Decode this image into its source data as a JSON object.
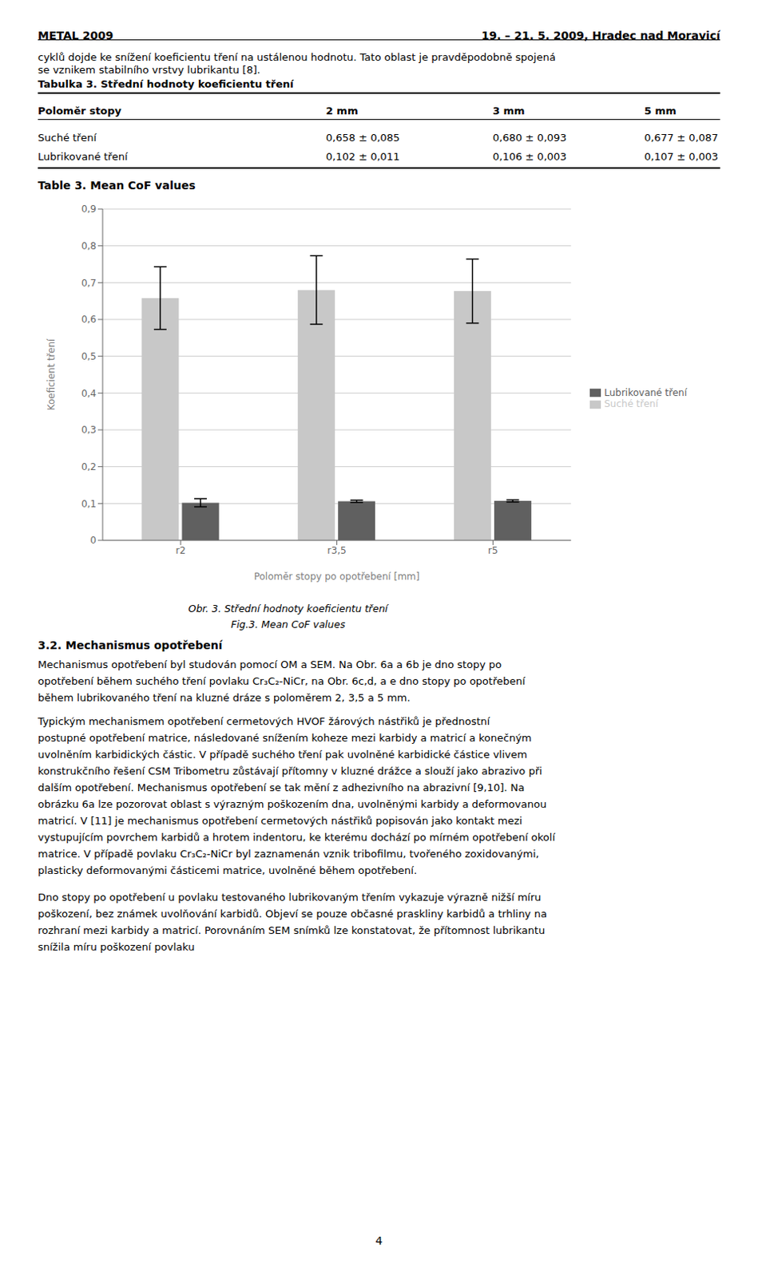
{
  "chart_data": {
    "type": "bar",
    "title": "Table 3. Mean CoF values",
    "xlabel": "Poloměr stopy po opotřebení [mm]",
    "ylabel": "Koeficient tření",
    "categories": [
      "r2",
      "r3,5",
      "r5"
    ],
    "series": [
      {
        "name": "Suché tření",
        "color": "#C8C8C8",
        "values": [
          0.658,
          0.68,
          0.677
        ],
        "errors": [
          0.085,
          0.093,
          0.087
        ]
      },
      {
        "name": "Lubrikované tření",
        "color": "#606060",
        "values": [
          0.102,
          0.106,
          0.107
        ],
        "errors": [
          0.011,
          0.003,
          0.003
        ]
      }
    ],
    "ylim": [
      0,
      0.9
    ],
    "yticks": [
      0,
      {
        "value": 0.1,
        "label": "0,1"
      },
      {
        "value": 0.2,
        "label": "0,2"
      },
      {
        "value": 0.3,
        "label": "0,3"
      },
      {
        "value": 0.4,
        "label": "0,4"
      },
      {
        "value": 0.5,
        "label": "0,5"
      },
      {
        "value": 0.6,
        "label": "0,6"
      },
      {
        "value": 0.7,
        "label": "0,7"
      },
      {
        "value": 0.8,
        "label": "0,8"
      },
      {
        "value": 0.9,
        "label": "0,9"
      }
    ],
    "grid": true,
    "legend": "right",
    "annotations": [
      "METAL 2009",
      "19. – 21. 5. 2009, Hradec nad Moravicí",
      "cyklů dojde ke snížení koeficientu tření na ustálenou hodnotu. Tato oblast je pravděpodobně spojená",
      "se vznikem stabilního vrstvy lubrikantu [8].",
      "Tabulka 3. Střední hodnoty koeficientu tření",
      "Poloměr stopy",
      "2 mm",
      "3 mm",
      "5 mm",
      "Suché tření",
      "0,658 ± 0,085",
      "0,680 ± 0,093",
      "0,677 ± 0,087",
      "Lubrikované tření",
      "0,102 ± 0,011",
      "0,106 ± 0,003",
      "0,107 ± 0,003",
      "Obr. 3. Střední hodnoty koeficientu tření",
      "Fig.3. Mean CoF values",
      "3.2. Mechanismus opotřebení",
      "Mechanismus opotřebení byl studován pomocí OM a SEM. Na Obr. 6a a 6b je dno stopy po",
      "opotřebení během suchého tření povlaku Cr₃C₂-NiCr, na Obr. 6c,d, a e dno stopy po opotřebení",
      "během lubrikovaného tření na kluzné dráze s poloměrem 2, 3,5 a 5 mm.",
      "Typickým mechanismem opotřebení cermetových HVOF žárových nástřiků je přednostní",
      "postupné opotřebení matrice, následované snížením koheze mezi karbidy a matricí a konečným",
      "uvolněním karbidických částic. V případě suchého tření pak uvolněné karbidické částice vlivem",
      "konstrukčního řešení CSM Tribometru zůstávají přítomny v kluzné drážce a slouží jako abrazivo při",
      "dalším opotřebení. Mechanismus opotřebení se tak mění z adhezivního na abrazivní [9,10]. Na",
      "obrázku 6a lze pozorovat oblast s výrazným poškozením dna, uvolněnými karbidy a deformovanou",
      "matricí. V [11] je mechanismus opotřebení cermetových nástřiků popisován jako kontakt mezi",
      "vystupujícím povrchem karbidů a hrotem indentoru, ke kterému dochází po mírném opotřebení okolí",
      "matrice. V případě povlaku Cr₃C₂-NiCr byl zaznamenán vznik tribofilmu, tvořeného zoxidovanými,",
      "plasticky deformovanými částicemi matrice, uvolněné během opotřebení.",
      "Dno stopy po opotřebení u povlaku testovaného lubrikovaným třením vykazuje výrazně nižší míru",
      "poškození, bez známek uvolňování karbidů. Objeví se pouze občasné praskliny karbidů a trhliny na",
      "rozhraní mezi karbidy a matricí. Porovnáním SEM snímků lze konstatovat, že přítomnost lubrikantu",
      "snížila míru poškození povlaku",
      "4"
    ]
  }
}
